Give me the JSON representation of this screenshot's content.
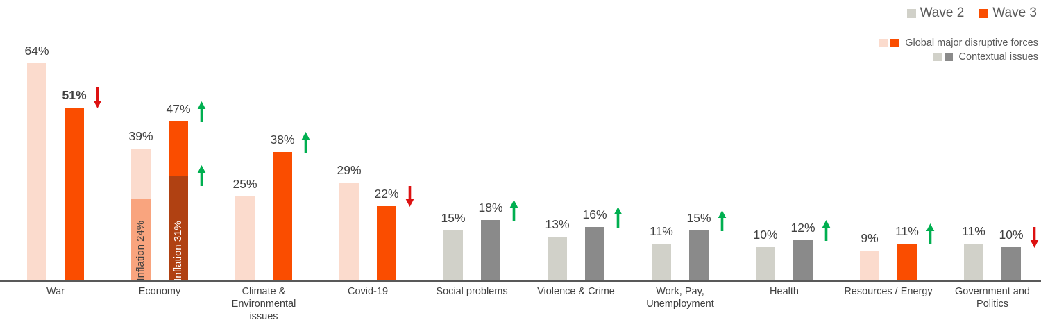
{
  "legend": {
    "wave2": {
      "label": "Wave 2",
      "color": "#D1D1C9"
    },
    "wave3": {
      "label": "Wave 3",
      "color": "#FA4D00"
    }
  },
  "group_legend": [
    {
      "label": "Global major disruptive forces",
      "colors": [
        "#FBDBCD",
        "#FA4D00"
      ]
    },
    {
      "label": "Contextual issues",
      "colors": [
        "#D1D1C9",
        "#8A8A8A"
      ]
    }
  ],
  "chart_data": {
    "type": "bar",
    "title": "",
    "categories": [
      "War",
      "Economy",
      "Climate & Environmental issues",
      "Covid-19",
      "Social problems",
      "Violence & Crime",
      "Work, Pay, Unemployment",
      "Health",
      "Resources / Energy",
      "Government and Politics"
    ],
    "series": [
      {
        "name": "Wave 2",
        "values": [
          64,
          39,
          25,
          29,
          15,
          13,
          11,
          10,
          9,
          11
        ]
      },
      {
        "name": "Wave 3",
        "values": [
          51,
          47,
          38,
          22,
          18,
          16,
          15,
          12,
          11,
          10
        ]
      }
    ],
    "value_suffix": "%",
    "category_group": [
      "disruptive",
      "disruptive",
      "disruptive",
      "disruptive",
      "contextual",
      "contextual",
      "contextual",
      "contextual",
      "disruptive",
      "contextual"
    ],
    "trend": [
      "down",
      "up",
      "up",
      "down",
      "up",
      "up",
      "up",
      "up",
      "up",
      "down"
    ],
    "bold_wave3_label": [
      true,
      false,
      false,
      false,
      false,
      false,
      false,
      false,
      false,
      false
    ],
    "overlays": [
      {
        "category_index": 1,
        "series_index": 0,
        "value": 24,
        "label": "Inflation 24%"
      },
      {
        "category_index": 1,
        "series_index": 1,
        "value": 31,
        "label": "Inflation 31%",
        "trend": "up"
      }
    ],
    "ylim": [
      0,
      70
    ],
    "grid": false,
    "legend_position": "top-right"
  },
  "colors": {
    "disruptive_wave2": "#FBDBCD",
    "disruptive_wave3": "#FA4D00",
    "contextual_wave2": "#D1D1C9",
    "contextual_wave3": "#8A8A8A",
    "overlay_wave2": "#F9A47E",
    "overlay_wave2_text": "#404040",
    "overlay_wave3": "#B04112",
    "overlay_wave3_text": "#FFFFFF",
    "up_arrow": "#00AF50",
    "down_arrow": "#DD1111",
    "label_text": "#404040",
    "axis_line": "#595959"
  }
}
